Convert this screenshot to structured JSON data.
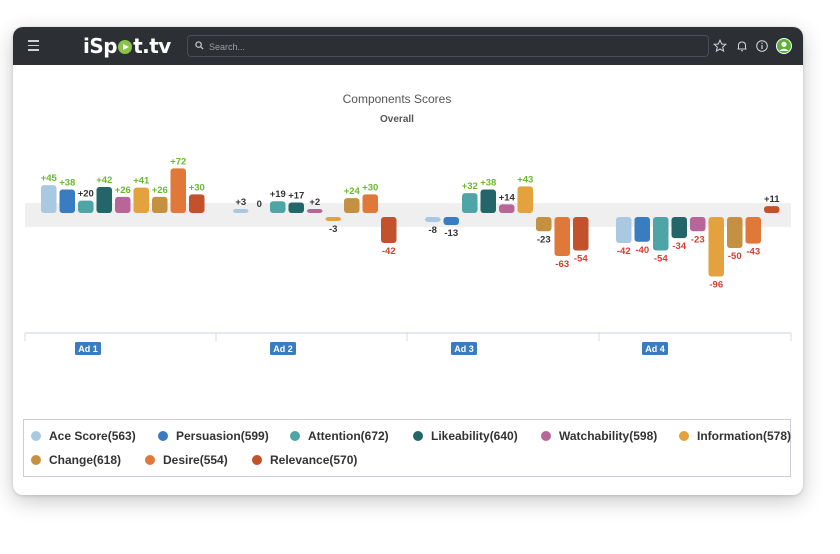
{
  "app": {
    "logo_text_left": "iSp",
    "logo_text_right": "t.tv",
    "search_placeholder": "Search...",
    "icons": [
      "menu-icon",
      "search-icon",
      "star-icon",
      "bell-icon",
      "info-icon",
      "avatar-icon"
    ]
  },
  "chart_data": {
    "type": "bar",
    "title": "Components Scores",
    "subtitle": "Overall",
    "categories": [
      "Ad 1",
      "Ad 2",
      "Ad 3",
      "Ad 4"
    ],
    "series": [
      {
        "name": "Ace Score",
        "legend": "Ace Score(563)",
        "color": "#a9c9e3",
        "values": [
          45,
          3,
          -8,
          -42
        ],
        "labels": [
          "+45",
          "+3",
          "-8",
          "-42"
        ]
      },
      {
        "name": "Persuasion",
        "legend": "Persuasion(599)",
        "color": "#3a7cc0",
        "values": [
          38,
          0,
          -13,
          -40
        ],
        "labels": [
          "+38",
          "0",
          "-13",
          "-40"
        ]
      },
      {
        "name": "Attention",
        "legend": "Attention(672)",
        "color": "#4fa5a6",
        "values": [
          20,
          19,
          32,
          -54
        ],
        "labels": [
          "+20",
          "+19",
          "+32",
          "-54"
        ]
      },
      {
        "name": "Likeability",
        "legend": "Likeability(640)",
        "color": "#23666a",
        "values": [
          42,
          17,
          38,
          -34
        ],
        "labels": [
          "+42",
          "+17",
          "+38",
          "-34"
        ]
      },
      {
        "name": "Watchability",
        "legend": "Watchability(598)",
        "color": "#b8659a",
        "values": [
          26,
          2,
          14,
          -23
        ],
        "labels": [
          "+26",
          "+2",
          "+14",
          "-23"
        ]
      },
      {
        "name": "Information",
        "legend": "Information(578)",
        "color": "#e3a23e",
        "values": [
          41,
          -3,
          43,
          -96
        ],
        "labels": [
          "+41",
          "-3",
          "+43",
          "-96"
        ]
      },
      {
        "name": "Change",
        "legend": "Change(618)",
        "color": "#c39141",
        "values": [
          26,
          24,
          -23,
          -50
        ],
        "labels": [
          "+26",
          "+24",
          "-23",
          "-50"
        ]
      },
      {
        "name": "Desire",
        "legend": "Desire(554)",
        "color": "#e0783a",
        "values": [
          72,
          30,
          -63,
          -43
        ],
        "labels": [
          "+72",
          "+30",
          "-63",
          "-43"
        ]
      },
      {
        "name": "Relevance",
        "legend": "Relevance(570)",
        "color": "#c2522c",
        "values": [
          30,
          -42,
          -54,
          11
        ],
        "labels": [
          "+30",
          "-42",
          "-54",
          "+11"
        ]
      }
    ],
    "band": [
      -12,
      12
    ],
    "label_colors": {
      "positive": "#6ab82e",
      "negative": "#d63b2f",
      "neutral": "#333333"
    },
    "legend_position": "bottom"
  }
}
